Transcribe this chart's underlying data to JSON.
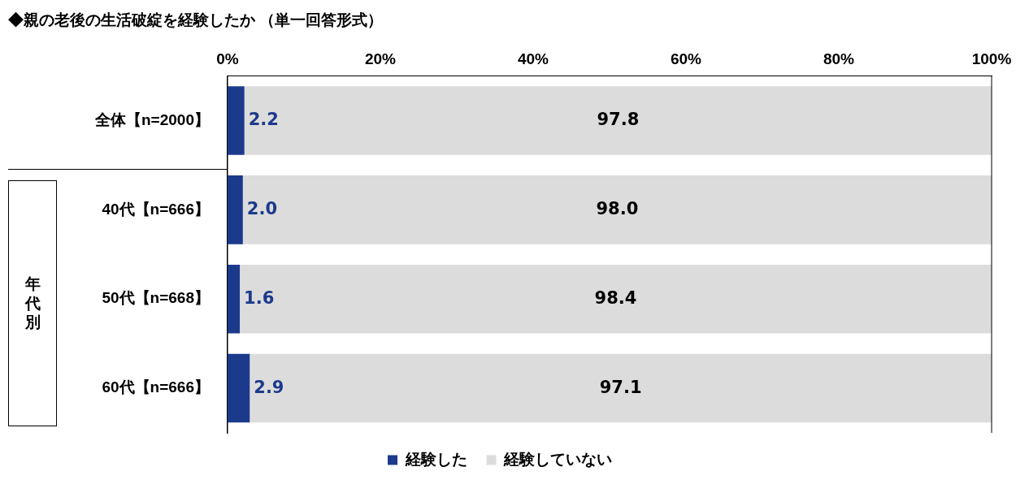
{
  "chart_data": {
    "type": "bar",
    "orientation": "horizontal",
    "stacked": true,
    "title": "◆親の老後の生活破綻を経験したか （単一回答形式）",
    "categories": [
      "全体【n=2000】",
      "40代【n=666】",
      "50代【n=668】",
      "60代【n=666】"
    ],
    "series": [
      {
        "name": "経験した",
        "color": "#1c3a8c",
        "values": [
          2.2,
          2.0,
          1.6,
          2.9
        ],
        "value_labels": [
          "2.2",
          "2.0",
          "1.6",
          "2.9"
        ]
      },
      {
        "name": "経験していない",
        "color": "#dcdcdc",
        "values": [
          97.8,
          98.0,
          98.4,
          97.1
        ],
        "value_labels": [
          "97.8",
          "98.0",
          "98.4",
          "97.1"
        ]
      }
    ],
    "xlim": [
      0,
      100
    ],
    "xticks": [
      {
        "value": 0,
        "label": "0%"
      },
      {
        "value": 20,
        "label": "20%"
      },
      {
        "value": 40,
        "label": "40%"
      },
      {
        "value": 60,
        "label": "60%"
      },
      {
        "value": 80,
        "label": "80%"
      },
      {
        "value": 100,
        "label": "100%"
      }
    ],
    "grid": false,
    "legend": "bottom",
    "annotations": [
      "年代別"
    ]
  }
}
